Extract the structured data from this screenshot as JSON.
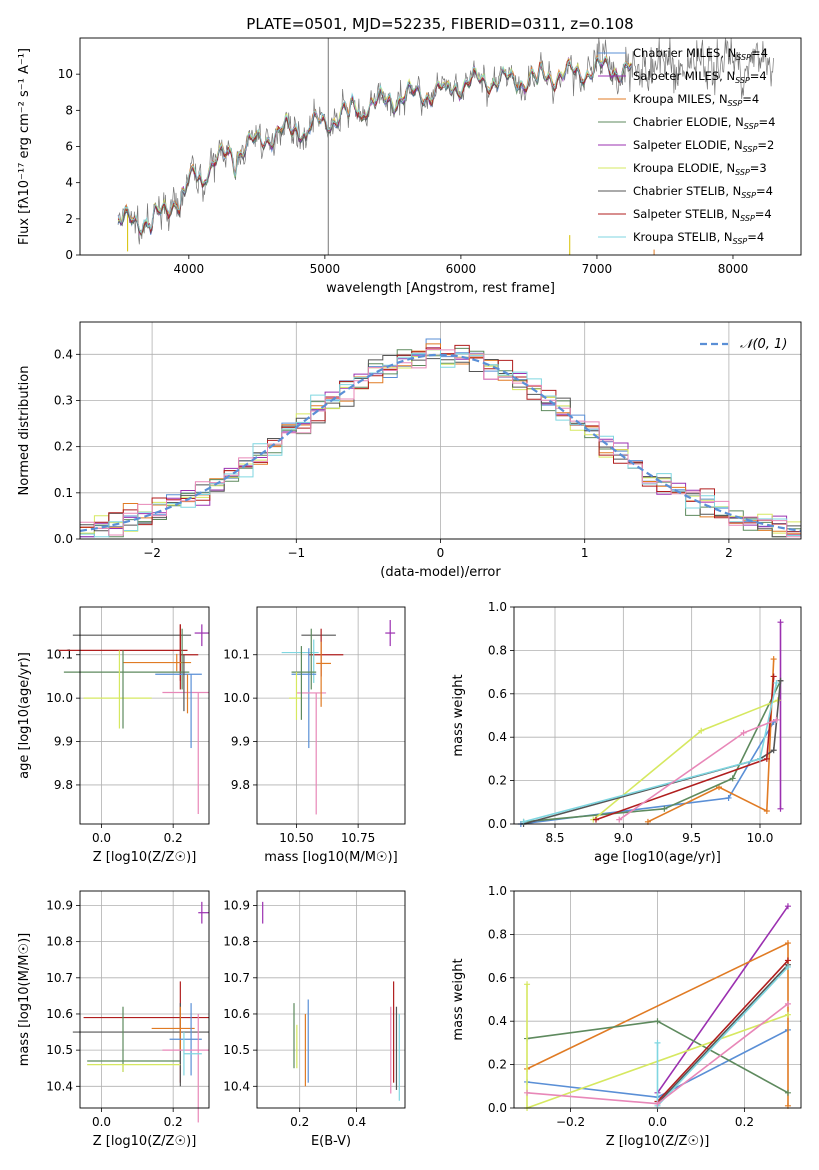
{
  "title": "PLATE=0501, MJD=52235, FIBERID=0311, z=0.108",
  "colors": {
    "chabrier_miles": "#5a8fd6",
    "salpeter_miles": "#9b30b0",
    "kroupa_miles": "#e07b24",
    "chabrier_elodie": "#5e8a5e",
    "salpeter_elodie": "#9b30b0",
    "kroupa_elodie": "#d6e860",
    "chabrier_stelib": "#555555",
    "salpeter_stelib": "#b01e1e",
    "kroupa_stelib": "#7fd6e0",
    "pink": "#e887b8",
    "data": "#777777"
  },
  "chart_data": [
    {
      "type": "line",
      "id": "spectrum",
      "title": "PLATE=0501, MJD=52235, FIBERID=0311, z=0.108",
      "xlabel": "wavelength [Angstrom, rest frame]",
      "ylabel": "Flux [fλ10⁻¹⁷ erg cm⁻² s⁻¹ A⁻¹]",
      "xlim": [
        3200,
        8500
      ],
      "ylim": [
        0,
        12
      ],
      "xticks": [
        "4000",
        "5000",
        "6000",
        "7000",
        "8000"
      ],
      "yticks": [
        "0",
        "2",
        "4",
        "6",
        "8",
        "10"
      ],
      "grid": false,
      "legend": "right",
      "x": [
        3480,
        3600,
        3800,
        4000,
        4200,
        4400,
        4600,
        4800,
        5000,
        5200,
        5400,
        5600,
        5800,
        6000,
        6200,
        6400,
        6600,
        6800,
        7000,
        7200,
        7400,
        7600,
        7800,
        8000,
        8200,
        8300
      ],
      "y": [
        1.9,
        1.8,
        2.2,
        4.0,
        5.2,
        5.9,
        6.6,
        7.0,
        7.3,
        8.1,
        8.4,
        8.8,
        9.0,
        9.4,
        9.7,
        9.6,
        9.9,
        10.0,
        10.3,
        10.3,
        10.4,
        10.5,
        10.6,
        10.7,
        10.7,
        10.6
      ],
      "legend_entries": [
        "Chabrier MILES, NSSP=4",
        "Salpeter MILES, NSSP=4",
        "Kroupa MILES, NSSP=4",
        "Chabrier ELODIE, NSSP=4",
        "Salpeter ELODIE, NSSP=2",
        "Kroupa ELODIE, NSSP=3",
        "Chabrier STELIB, NSSP=4",
        "Salpeter STELIB, NSSP=4",
        "Kroupa STELIB, NSSP=4"
      ]
    },
    {
      "type": "line",
      "id": "residuals",
      "xlabel": "(data-model)/error",
      "ylabel": "Normed distribution",
      "xlim": [
        -2.5,
        2.5
      ],
      "ylim": [
        0,
        0.47
      ],
      "xticks": [
        "−2",
        "−1",
        "0",
        "1",
        "2"
      ],
      "yticks": [
        "0.0",
        "0.1",
        "0.2",
        "0.3",
        "0.4"
      ],
      "grid": true,
      "legend": "top-right",
      "legend_entries": [
        "𝒩(0, 1)"
      ]
    },
    {
      "type": "scatter",
      "id": "age-vs-Z",
      "xlabel": "Z [log10(Z/Z☉)]",
      "ylabel": "age [log10(age/yr)]",
      "xlim": [
        -0.06,
        0.3
      ],
      "ylim": [
        9.71,
        10.21
      ],
      "xticks": [
        "0.0",
        "0.2"
      ],
      "yticks": [
        "9.8",
        "9.9",
        "10.0",
        "10.1"
      ],
      "grid": true
    },
    {
      "type": "scatter",
      "id": "age-vs-mass",
      "xlabel": "mass [log10(M/M☉)]",
      "ylabel": "",
      "xlim": [
        10.34,
        10.94
      ],
      "ylim": [
        9.71,
        10.21
      ],
      "xticks": [
        "10.50",
        "10.75"
      ],
      "yticks": [
        "9.8",
        "9.9",
        "10.0",
        "10.1"
      ],
      "grid": true
    },
    {
      "type": "line",
      "id": "weight-vs-age",
      "xlabel": "age [log10(age/yr)]",
      "ylabel": "mass weight",
      "xlim": [
        8.2,
        10.3
      ],
      "ylim": [
        0,
        1
      ],
      "xticks": [
        "8.5",
        "9.0",
        "9.5",
        "10.0"
      ],
      "yticks": [
        "0.0",
        "0.2",
        "0.4",
        "0.6",
        "0.8",
        "1.0"
      ],
      "grid": true
    },
    {
      "type": "scatter",
      "id": "mass-vs-Z",
      "xlabel": "Z [log10(Z/Z☉)]",
      "ylabel": "mass [log10(M/M☉)]",
      "xlim": [
        -0.06,
        0.3
      ],
      "ylim": [
        10.34,
        10.94
      ],
      "xticks": [
        "0.0",
        "0.2"
      ],
      "yticks": [
        "10.4",
        "10.5",
        "10.6",
        "10.7",
        "10.8",
        "10.9"
      ],
      "grid": true
    },
    {
      "type": "scatter",
      "id": "mass-vs-EBV",
      "xlabel": "E(B-V)",
      "ylabel": "",
      "xlim": [
        0.05,
        0.57
      ],
      "ylim": [
        10.34,
        10.94
      ],
      "xticks": [
        "0.2",
        "0.4"
      ],
      "yticks": [
        "10.4",
        "10.5",
        "10.6",
        "10.7",
        "10.8",
        "10.9"
      ],
      "grid": true
    },
    {
      "type": "line",
      "id": "weight-vs-Z",
      "xlabel": "Z [log10(Z/Z☉)]",
      "ylabel": "mass weight",
      "xlim": [
        -0.33,
        0.33
      ],
      "ylim": [
        0,
        1
      ],
      "xticks": [
        "−0.2",
        "0.0",
        "0.2"
      ],
      "yticks": [
        "0.0",
        "0.2",
        "0.4",
        "0.6",
        "0.8",
        "1.0"
      ],
      "grid": true
    }
  ]
}
